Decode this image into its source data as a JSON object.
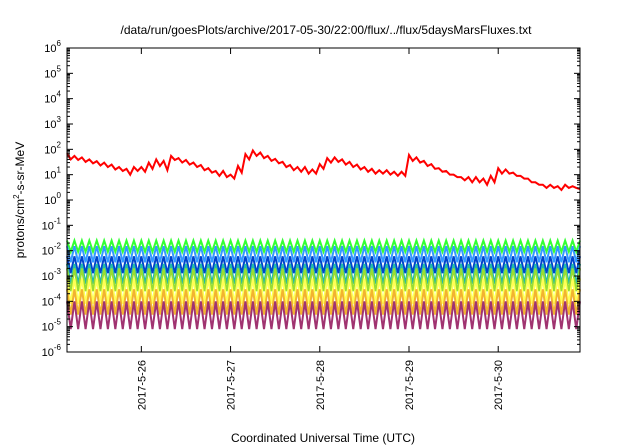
{
  "chart_data": {
    "type": "line",
    "title": "/data/run/goesPlots/archive/2017-05-30/22:00/flux/../flux/5daysMarsFluxes.txt",
    "xlabel": "Coordinated Universal Time (UTC)",
    "ylabel": {
      "pre": "protons/cm",
      "sup": "2",
      "post": "-s-sr-MeV"
    },
    "y_scale": "log",
    "ylim": [
      1e-06,
      1000000.0
    ],
    "xlim": [
      "2017-05-25 04:00",
      "2017-05-30 22:00"
    ],
    "grid": false,
    "legend": "none",
    "x_ticks": [
      {
        "value": "2017-05-26",
        "label": "2017-5-26"
      },
      {
        "value": "2017-05-27",
        "label": "2017-5-27"
      },
      {
        "value": "2017-05-28",
        "label": "2017-5-28"
      },
      {
        "value": "2017-05-29",
        "label": "2017-5-29"
      },
      {
        "value": "2017-05-30",
        "label": "2017-5-30"
      }
    ],
    "y_ticks": [
      {
        "value": 1e-06,
        "base": "10",
        "exp": "-6"
      },
      {
        "value": 1e-05,
        "base": "10",
        "exp": "-5"
      },
      {
        "value": 0.0001,
        "base": "10",
        "exp": "-4"
      },
      {
        "value": 0.001,
        "base": "10",
        "exp": "-3"
      },
      {
        "value": 0.01,
        "base": "10",
        "exp": "-2"
      },
      {
        "value": 0.1,
        "base": "10",
        "exp": "-1"
      },
      {
        "value": 1,
        "base": "10",
        "exp": "0"
      },
      {
        "value": 10.0,
        "base": "10",
        "exp": "1"
      },
      {
        "value": 100.0,
        "base": "10",
        "exp": "2"
      },
      {
        "value": 1000.0,
        "base": "10",
        "exp": "3"
      },
      {
        "value": 10000.0,
        "base": "10",
        "exp": "4"
      },
      {
        "value": 100000.0,
        "base": "10",
        "exp": "5"
      },
      {
        "value": 1000000.0,
        "base": "10",
        "exp": "6"
      }
    ],
    "series": [
      {
        "color": "#ff0000",
        "line_width": 2,
        "points": [
          [
            "2017-05-25 04:00",
            70
          ],
          [
            "2017-05-25 05:00",
            40
          ],
          [
            "2017-05-25 06:00",
            55
          ],
          [
            "2017-05-25 07:00",
            38
          ],
          [
            "2017-05-25 08:00",
            48
          ],
          [
            "2017-05-25 09:00",
            32
          ],
          [
            "2017-05-25 10:00",
            40
          ],
          [
            "2017-05-25 11:00",
            28
          ],
          [
            "2017-05-25 12:00",
            34
          ],
          [
            "2017-05-25 13:00",
            23
          ],
          [
            "2017-05-25 14:00",
            30
          ],
          [
            "2017-05-25 15:00",
            20
          ],
          [
            "2017-05-25 16:00",
            25
          ],
          [
            "2017-05-25 17:00",
            16
          ],
          [
            "2017-05-25 18:00",
            20
          ],
          [
            "2017-05-25 19:00",
            14
          ],
          [
            "2017-05-25 20:00",
            17
          ],
          [
            "2017-05-25 21:00",
            10
          ],
          [
            "2017-05-25 22:00",
            20
          ],
          [
            "2017-05-25 23:00",
            14
          ],
          [
            "2017-05-26 00:00",
            20
          ],
          [
            "2017-05-26 01:00",
            13
          ],
          [
            "2017-05-26 02:00",
            30
          ],
          [
            "2017-05-26 03:00",
            17
          ],
          [
            "2017-05-26 04:00",
            40
          ],
          [
            "2017-05-26 05:00",
            22
          ],
          [
            "2017-05-26 06:00",
            35
          ],
          [
            "2017-05-26 07:00",
            15
          ],
          [
            "2017-05-26 08:00",
            55
          ],
          [
            "2017-05-26 09:00",
            38
          ],
          [
            "2017-05-26 10:00",
            45
          ],
          [
            "2017-05-26 11:00",
            30
          ],
          [
            "2017-05-26 12:00",
            38
          ],
          [
            "2017-05-26 13:00",
            25
          ],
          [
            "2017-05-26 14:00",
            30
          ],
          [
            "2017-05-26 15:00",
            20
          ],
          [
            "2017-05-26 16:00",
            24
          ],
          [
            "2017-05-26 17:00",
            15
          ],
          [
            "2017-05-26 18:00",
            18
          ],
          [
            "2017-05-26 19:00",
            12
          ],
          [
            "2017-05-26 20:00",
            14
          ],
          [
            "2017-05-26 21:00",
            9
          ],
          [
            "2017-05-26 22:00",
            14
          ],
          [
            "2017-05-26 23:00",
            8
          ],
          [
            "2017-05-27 00:00",
            10
          ],
          [
            "2017-05-27 01:00",
            7
          ],
          [
            "2017-05-27 02:00",
            22
          ],
          [
            "2017-05-27 03:00",
            12
          ],
          [
            "2017-05-27 04:00",
            65
          ],
          [
            "2017-05-27 05:00",
            40
          ],
          [
            "2017-05-27 06:00",
            90
          ],
          [
            "2017-05-27 07:00",
            55
          ],
          [
            "2017-05-27 08:00",
            75
          ],
          [
            "2017-05-27 09:00",
            45
          ],
          [
            "2017-05-27 10:00",
            55
          ],
          [
            "2017-05-27 11:00",
            35
          ],
          [
            "2017-05-27 12:00",
            42
          ],
          [
            "2017-05-27 13:00",
            28
          ],
          [
            "2017-05-27 14:00",
            32
          ],
          [
            "2017-05-27 15:00",
            20
          ],
          [
            "2017-05-27 16:00",
            24
          ],
          [
            "2017-05-27 17:00",
            15
          ],
          [
            "2017-05-27 18:00",
            20
          ],
          [
            "2017-05-27 19:00",
            13
          ],
          [
            "2017-05-27 20:00",
            20
          ],
          [
            "2017-05-27 21:00",
            11
          ],
          [
            "2017-05-27 22:00",
            16
          ],
          [
            "2017-05-27 23:00",
            11
          ],
          [
            "2017-05-28 00:00",
            26
          ],
          [
            "2017-05-28 01:00",
            17
          ],
          [
            "2017-05-28 02:00",
            45
          ],
          [
            "2017-05-28 03:00",
            30
          ],
          [
            "2017-05-28 04:00",
            48
          ],
          [
            "2017-05-28 05:00",
            32
          ],
          [
            "2017-05-28 06:00",
            40
          ],
          [
            "2017-05-28 07:00",
            25
          ],
          [
            "2017-05-28 08:00",
            32
          ],
          [
            "2017-05-28 09:00",
            20
          ],
          [
            "2017-05-28 10:00",
            25
          ],
          [
            "2017-05-28 11:00",
            16
          ],
          [
            "2017-05-28 12:00",
            20
          ],
          [
            "2017-05-28 13:00",
            13
          ],
          [
            "2017-05-28 14:00",
            17
          ],
          [
            "2017-05-28 15:00",
            11
          ],
          [
            "2017-05-28 16:00",
            15
          ],
          [
            "2017-05-28 17:00",
            11
          ],
          [
            "2017-05-28 18:00",
            15
          ],
          [
            "2017-05-28 19:00",
            10
          ],
          [
            "2017-05-28 20:00",
            13
          ],
          [
            "2017-05-28 21:00",
            9
          ],
          [
            "2017-05-28 22:00",
            13
          ],
          [
            "2017-05-28 23:00",
            9
          ],
          [
            "2017-05-29 00:00",
            60
          ],
          [
            "2017-05-29 01:00",
            35
          ],
          [
            "2017-05-29 02:00",
            48
          ],
          [
            "2017-05-29 03:00",
            30
          ],
          [
            "2017-05-29 04:00",
            35
          ],
          [
            "2017-05-29 05:00",
            22
          ],
          [
            "2017-05-29 06:00",
            26
          ],
          [
            "2017-05-29 07:00",
            17
          ],
          [
            "2017-05-29 08:00",
            18
          ],
          [
            "2017-05-29 09:00",
            13
          ],
          [
            "2017-05-29 10:00",
            14
          ],
          [
            "2017-05-29 11:00",
            10
          ],
          [
            "2017-05-29 12:00",
            10
          ],
          [
            "2017-05-29 13:00",
            8
          ],
          [
            "2017-05-29 14:00",
            8
          ],
          [
            "2017-05-29 15:00",
            6
          ],
          [
            "2017-05-29 16:00",
            8
          ],
          [
            "2017-05-29 17:00",
            5
          ],
          [
            "2017-05-29 18:00",
            8
          ],
          [
            "2017-05-29 19:00",
            5
          ],
          [
            "2017-05-29 20:00",
            7
          ],
          [
            "2017-05-29 21:00",
            4
          ],
          [
            "2017-05-29 22:00",
            9
          ],
          [
            "2017-05-29 23:00",
            5
          ],
          [
            "2017-05-30 00:00",
            18
          ],
          [
            "2017-05-30 01:00",
            11
          ],
          [
            "2017-05-30 02:00",
            16
          ],
          [
            "2017-05-30 03:00",
            11
          ],
          [
            "2017-05-30 04:00",
            12
          ],
          [
            "2017-05-30 05:00",
            9
          ],
          [
            "2017-05-30 06:00",
            9
          ],
          [
            "2017-05-30 07:00",
            7
          ],
          [
            "2017-05-30 08:00",
            7
          ],
          [
            "2017-05-30 09:00",
            5
          ],
          [
            "2017-05-30 10:00",
            5
          ],
          [
            "2017-05-30 11:00",
            4
          ],
          [
            "2017-05-30 12:00",
            4
          ],
          [
            "2017-05-30 13:00",
            3
          ],
          [
            "2017-05-30 14:00",
            4
          ],
          [
            "2017-05-30 15:00",
            3
          ],
          [
            "2017-05-30 16:00",
            3.5
          ],
          [
            "2017-05-30 17:00",
            2.5
          ],
          [
            "2017-05-30 18:00",
            4
          ],
          [
            "2017-05-30 19:00",
            3
          ],
          [
            "2017-05-30 20:00",
            3.5
          ],
          [
            "2017-05-30 21:00",
            3
          ],
          [
            "2017-05-30 22:00",
            2.7
          ]
        ]
      },
      {
        "color": "#33ff33",
        "line_width": 2,
        "period_hours": 2,
        "peak": 0.025,
        "trough": 0.009
      },
      {
        "color": "#3399ff",
        "line_width": 2,
        "period_hours": 2,
        "peak": 0.015,
        "trough": 0.0035
      },
      {
        "color": "#0044cc",
        "line_width": 2,
        "period_hours": 2,
        "peak": 0.006,
        "trough": 0.0013
      },
      {
        "color": "#22bbaa",
        "line_width": 2,
        "period_hours": 2,
        "peak": 0.003,
        "trough": 0.0005
      },
      {
        "color": "#99dd33",
        "line_width": 2,
        "period_hours": 2,
        "peak": 0.002,
        "trough": 0.00025
      },
      {
        "color": "#ffff55",
        "line_width": 2,
        "period_hours": 2,
        "peak": 0.0008,
        "trough": 8e-05
      },
      {
        "color": "#f2b330",
        "line_width": 2,
        "period_hours": 2,
        "peak": 0.0003,
        "trough": 3e-05
      },
      {
        "color": "#a03370",
        "line_width": 2,
        "period_hours": 2,
        "peak": 0.0001,
        "trough": 8e-06
      }
    ]
  }
}
